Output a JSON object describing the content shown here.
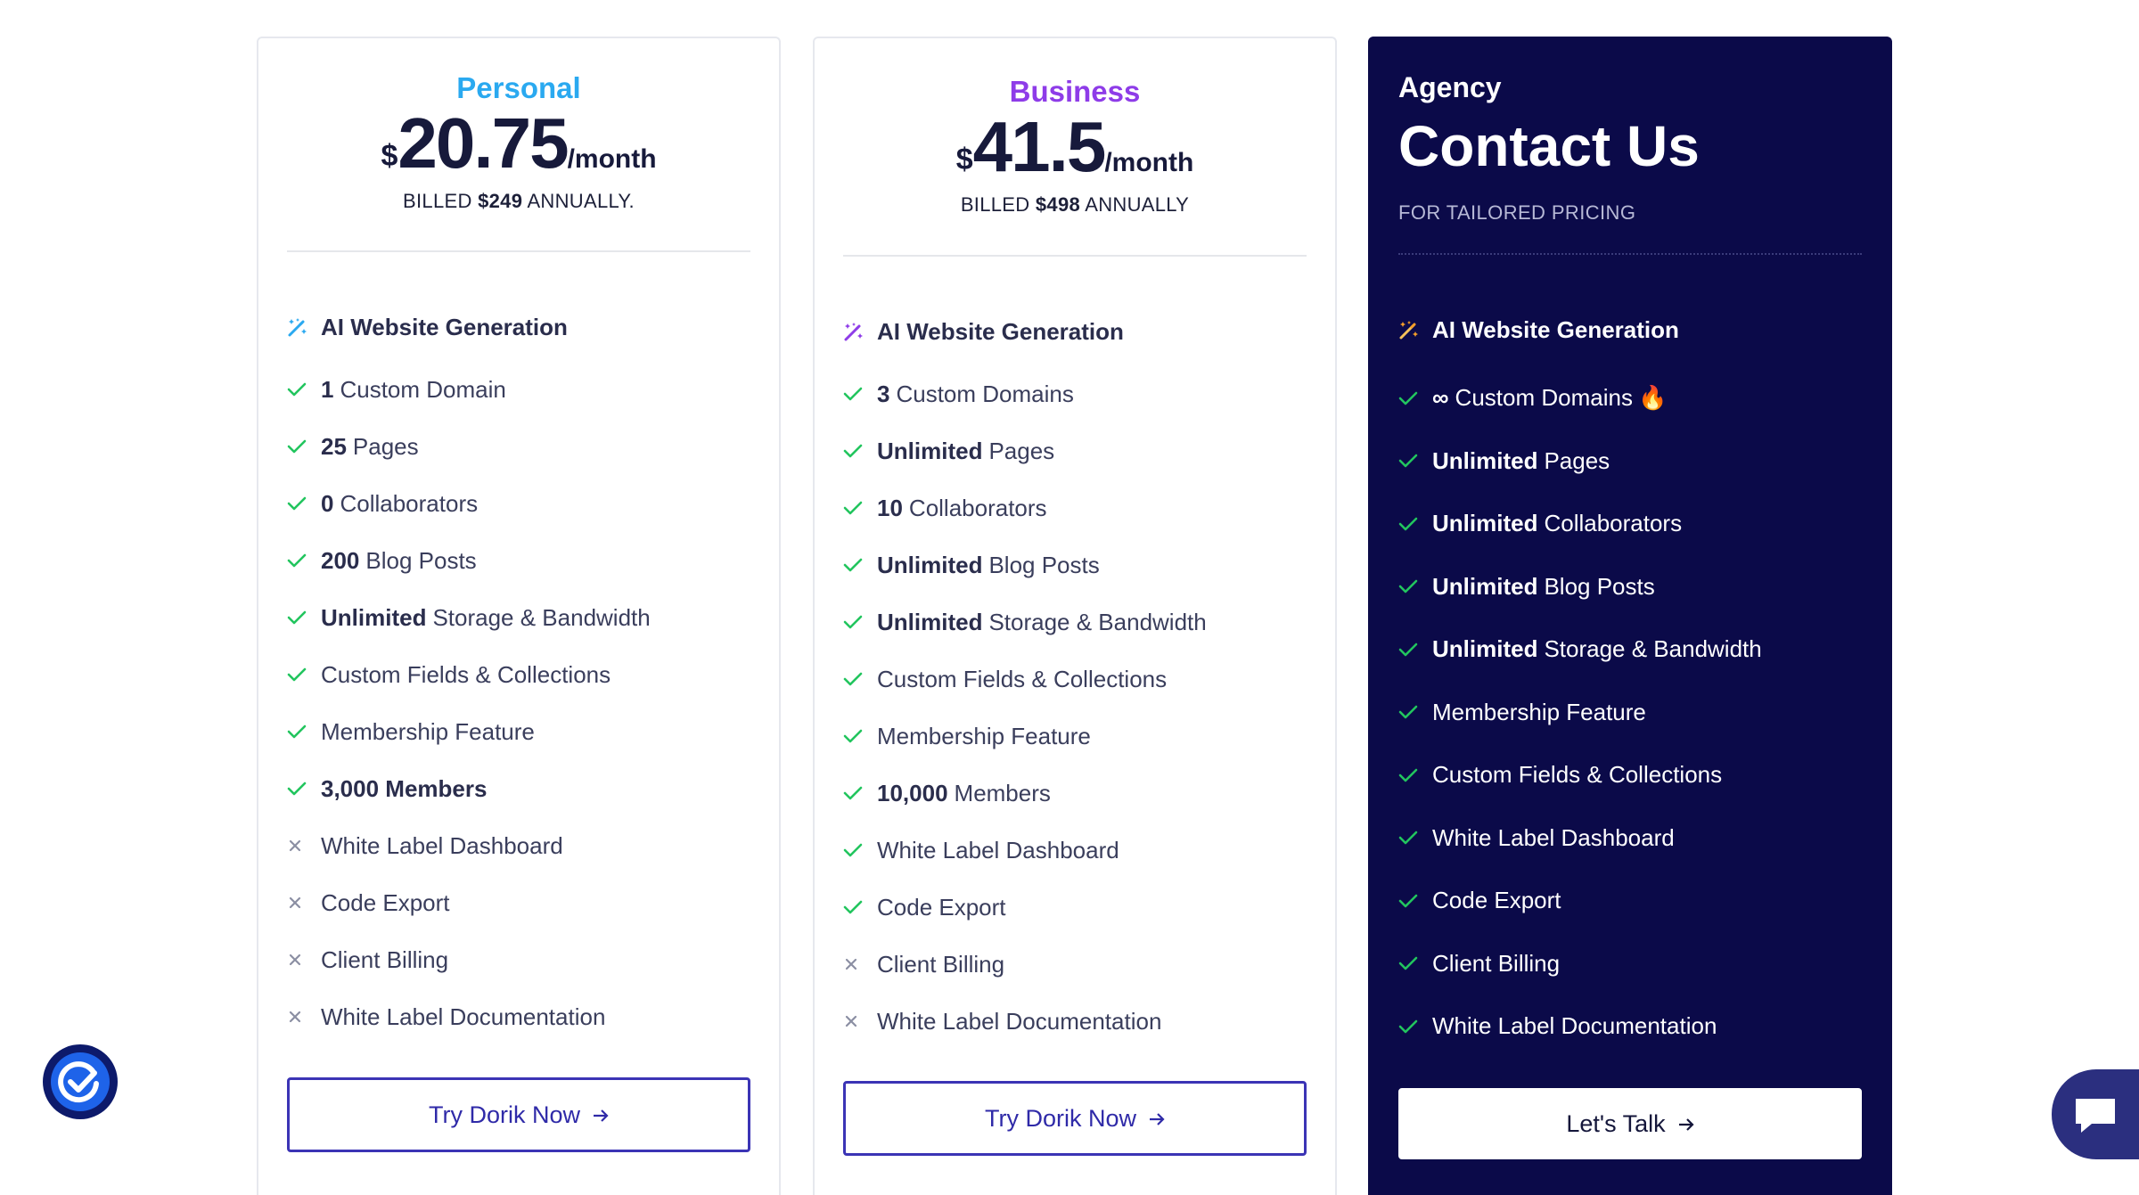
{
  "colors": {
    "personal": "#2aa9f0",
    "business": "#8e3ce8",
    "agency_bg": "#0b0a49",
    "check": "#22c55e",
    "cta": "#3b34b5"
  },
  "plans": [
    {
      "name": "Personal",
      "currency": "$",
      "price": "20.75",
      "period": "/month",
      "billed_prefix": "BILLED",
      "billed_amount": "$249",
      "billed_suffix": "ANNUALLY.",
      "features": [
        {
          "icon": "magic-wand-icon",
          "bold": "",
          "text": "AI Website Generation",
          "included": true
        },
        {
          "icon": "check-icon",
          "bold": "1",
          "text": "Custom Domain",
          "included": true
        },
        {
          "icon": "check-icon",
          "bold": "25",
          "text": "Pages",
          "included": true
        },
        {
          "icon": "check-icon",
          "bold": "0",
          "text": "Collaborators",
          "included": true
        },
        {
          "icon": "check-icon",
          "bold": "200",
          "text": "Blog Posts",
          "included": true
        },
        {
          "icon": "check-icon",
          "bold": "Unlimited",
          "text": "Storage & Bandwidth",
          "included": true
        },
        {
          "icon": "check-icon",
          "bold": "",
          "text": "Custom Fields & Collections",
          "included": true
        },
        {
          "icon": "check-icon",
          "bold": "",
          "text": "Membership Feature",
          "included": true
        },
        {
          "icon": "check-icon",
          "bold": "3,000 Members",
          "text": "",
          "included": true
        },
        {
          "icon": "cross-icon",
          "bold": "",
          "text": "White Label Dashboard",
          "included": false
        },
        {
          "icon": "cross-icon",
          "bold": "",
          "text": "Code Export",
          "included": false
        },
        {
          "icon": "cross-icon",
          "bold": "",
          "text": "Client Billing",
          "included": false
        },
        {
          "icon": "cross-icon",
          "bold": "",
          "text": "White Label Documentation",
          "included": false
        }
      ],
      "cta": "Try Dorik Now"
    },
    {
      "name": "Business",
      "currency": "$",
      "price": "41.5",
      "period": "/month",
      "billed_prefix": "BILLED",
      "billed_amount": "$498",
      "billed_suffix": "ANNUALLY",
      "features": [
        {
          "icon": "magic-wand-icon",
          "bold": "",
          "text": "AI Website Generation",
          "included": true
        },
        {
          "icon": "check-icon",
          "bold": "3",
          "text": "Custom Domains",
          "included": true
        },
        {
          "icon": "check-icon",
          "bold": "Unlimited",
          "text": "Pages",
          "included": true
        },
        {
          "icon": "check-icon",
          "bold": "10",
          "text": "Collaborators",
          "included": true
        },
        {
          "icon": "check-icon",
          "bold": "Unlimited",
          "text": "Blog Posts",
          "included": true
        },
        {
          "icon": "check-icon",
          "bold": "Unlimited",
          "text": "Storage & Bandwidth",
          "included": true
        },
        {
          "icon": "check-icon",
          "bold": "",
          "text": "Custom Fields & Collections",
          "included": true
        },
        {
          "icon": "check-icon",
          "bold": "",
          "text": "Membership Feature",
          "included": true
        },
        {
          "icon": "check-icon",
          "bold": "10,000",
          "text": "Members",
          "included": true
        },
        {
          "icon": "check-icon",
          "bold": "",
          "text": "White Label Dashboard",
          "included": true
        },
        {
          "icon": "check-icon",
          "bold": "",
          "text": "Code Export",
          "included": true
        },
        {
          "icon": "cross-icon",
          "bold": "",
          "text": "Client Billing",
          "included": false
        },
        {
          "icon": "cross-icon",
          "bold": "",
          "text": "White Label Documentation",
          "included": false
        }
      ],
      "cta": "Try Dorik Now"
    },
    {
      "name": "Agency",
      "contact": "Contact Us",
      "tailored": "FOR TAILORED PRICING",
      "features": [
        {
          "icon": "magic-wand-icon",
          "bold": "",
          "text": "AI Website Generation",
          "included": true
        },
        {
          "icon": "check-icon",
          "bold": "∞",
          "text": "Custom Domains",
          "included": true,
          "extra": "🔥"
        },
        {
          "icon": "check-icon",
          "bold": "Unlimited",
          "text": "Pages",
          "included": true
        },
        {
          "icon": "check-icon",
          "bold": "Unlimited",
          "text": "Collaborators",
          "included": true
        },
        {
          "icon": "check-icon",
          "bold": "Unlimited",
          "text": "Blog Posts",
          "included": true
        },
        {
          "icon": "check-icon",
          "bold": "Unlimited",
          "text": "Storage & Bandwidth",
          "included": true
        },
        {
          "icon": "check-icon",
          "bold": "",
          "text": "Membership Feature",
          "included": true
        },
        {
          "icon": "check-icon",
          "bold": "",
          "text": "Custom Fields & Collections",
          "included": true
        },
        {
          "icon": "check-icon",
          "bold": "",
          "text": "White Label Dashboard",
          "included": true
        },
        {
          "icon": "check-icon",
          "bold": "",
          "text": "Code Export",
          "included": true
        },
        {
          "icon": "check-icon",
          "bold": "",
          "text": "Client Billing",
          "included": true
        },
        {
          "icon": "check-icon",
          "bold": "",
          "text": "White Label Documentation",
          "included": true
        }
      ],
      "cta": "Let's Talk"
    }
  ],
  "widgets": {
    "left_badge_icon": "check-badge-icon",
    "chat_icon": "chat-icon"
  }
}
